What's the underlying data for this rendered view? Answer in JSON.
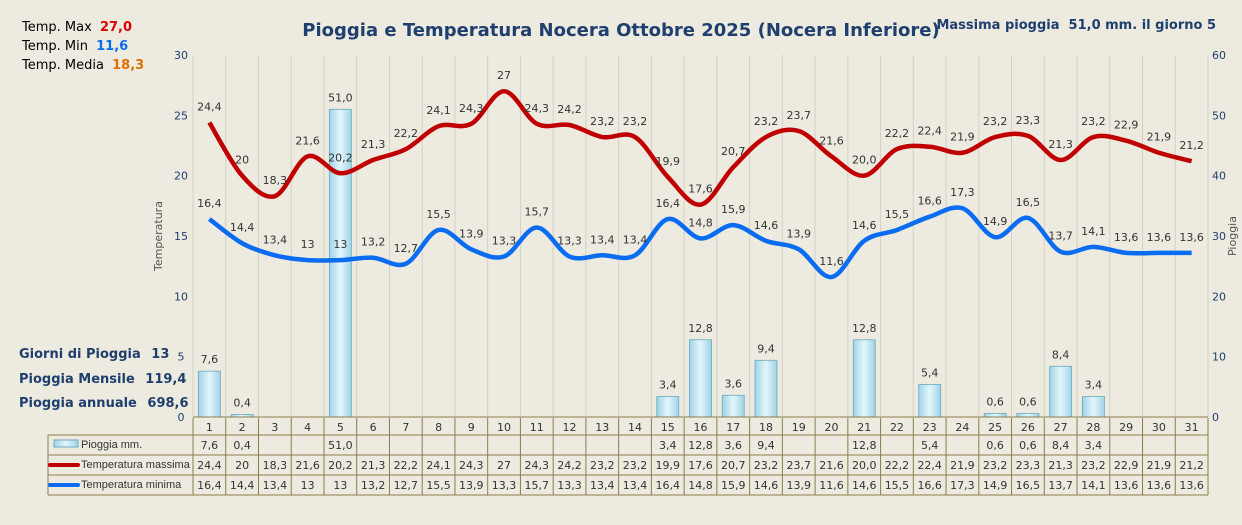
{
  "chart_data": {
    "type": "bar+line",
    "title": "Pioggia e Temperatura Nocera Ottobre 2025 (Nocera Inferiore)",
    "max_rain_note": "Massima pioggia  51,0 mm. il giorno 5",
    "ylabel_left": "Temperatura",
    "ylabel_right": "Pioggia",
    "ylim_left": [
      0,
      30
    ],
    "ylim_right": [
      0,
      60
    ],
    "yticks_left": [
      "0",
      "5",
      "10",
      "15",
      "20",
      "25",
      "30"
    ],
    "yticks_right": [
      "0",
      "10",
      "20",
      "30",
      "40",
      "50",
      "60"
    ],
    "categories": [
      "1",
      "2",
      "3",
      "4",
      "5",
      "6",
      "7",
      "8",
      "9",
      "10",
      "11",
      "12",
      "13",
      "14",
      "15",
      "16",
      "17",
      "18",
      "19",
      "20",
      "21",
      "22",
      "23",
      "24",
      "25",
      "26",
      "27",
      "28",
      "29",
      "30",
      "31"
    ],
    "series": [
      {
        "name": "Pioggia mm.",
        "type": "bar",
        "axis": "right",
        "color": "#bfe6f2",
        "values": [
          "7,6",
          "0,4",
          "",
          "",
          "51,0",
          "",
          "",
          "",
          "",
          "",
          "",
          "",
          "",
          "",
          "3,4",
          "12,8",
          "3,6",
          "9,4",
          "",
          "",
          "12,8",
          "",
          "5,4",
          "",
          "0,6",
          "0,6",
          "8,4",
          "3,4",
          "",
          "",
          ""
        ]
      },
      {
        "name": "Temperatura massima",
        "type": "line",
        "axis": "left",
        "color": "#c00000",
        "values": [
          "24,4",
          "20",
          "18,3",
          "21,6",
          "20,2",
          "21,3",
          "22,2",
          "24,1",
          "24,3",
          "27",
          "24,3",
          "24,2",
          "23,2",
          "23,2",
          "19,9",
          "17,6",
          "20,7",
          "23,2",
          "23,7",
          "21,6",
          "20,0",
          "22,2",
          "22,4",
          "21,9",
          "23,2",
          "23,3",
          "21,3",
          "23,2",
          "22,9",
          "21,9",
          "21,2"
        ]
      },
      {
        "name": "Temperatura minima",
        "type": "line",
        "axis": "left",
        "color": "#0a6cf0",
        "values": [
          "16,4",
          "14,4",
          "13,4",
          "13",
          "13",
          "13,2",
          "12,7",
          "15,5",
          "13,9",
          "13,3",
          "15,7",
          "13,3",
          "13,4",
          "13,4",
          "16,4",
          "14,8",
          "15,9",
          "14,6",
          "13,9",
          "11,6",
          "14,6",
          "15,5",
          "16,6",
          "17,3",
          "14,9",
          "16,5",
          "13,7",
          "14,1",
          "13,6",
          "13,6",
          "13,6"
        ]
      }
    ]
  },
  "summary": {
    "tmax_label": "Temp. Max",
    "tmax_value": "27,0",
    "tmax_color": "#e00000",
    "tmin_label": "Temp.  Min",
    "tmin_value": "11,6",
    "tmin_color": "#0a6cf0",
    "tmed_label": "Temp. Media",
    "tmed_value": "18,3",
    "tmed_color": "#e07000",
    "rain_days_label": "Giorni di Pioggia",
    "rain_days_value": "13",
    "rain_month_label": "Pioggia Mensile",
    "rain_month_value": "119,4",
    "rain_year_label": "Pioggia annuale",
    "rain_year_value": "698,6"
  }
}
